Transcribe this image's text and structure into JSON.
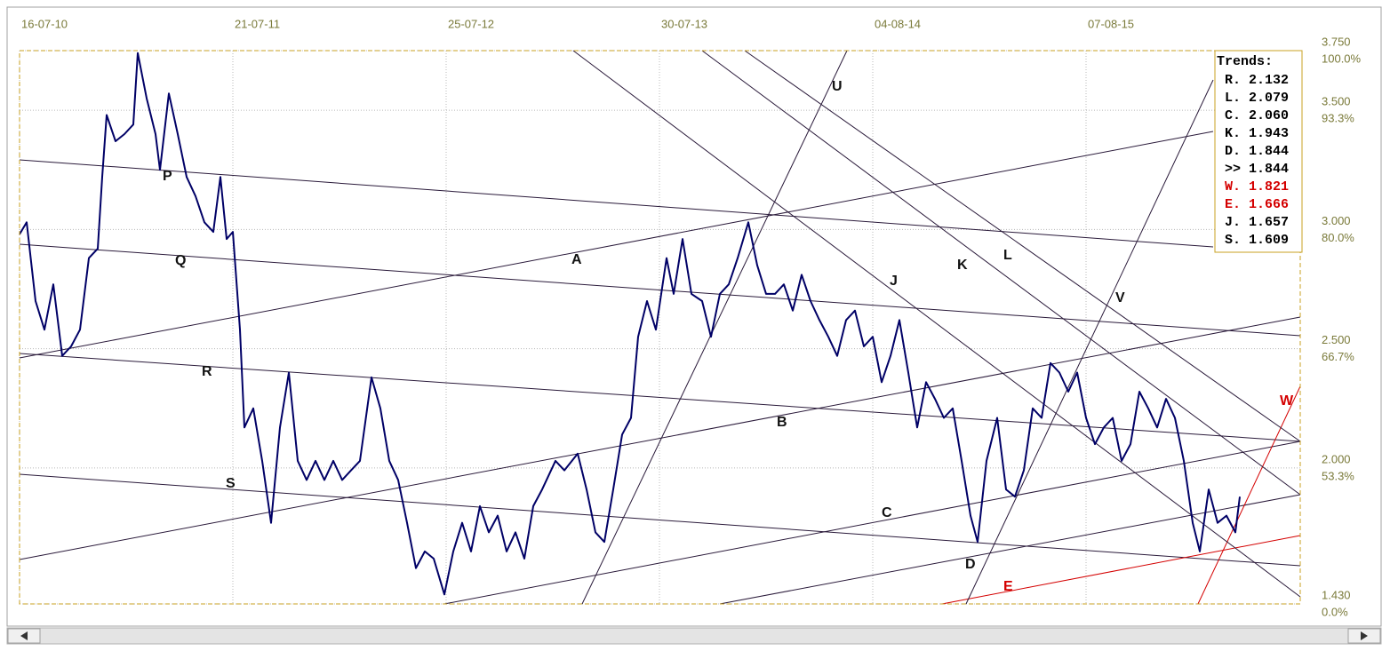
{
  "chart_data": {
    "type": "line",
    "color": "#000066",
    "grid": true,
    "xlim": [
      0,
      1441
    ],
    "xticks": [
      {
        "value": 0,
        "label": "16-07-10"
      },
      {
        "value": 240,
        "label": "21-07-11"
      },
      {
        "value": 480,
        "label": "25-07-12"
      },
      {
        "value": 720,
        "label": "30-07-13"
      },
      {
        "value": 960,
        "label": "04-08-14"
      },
      {
        "value": 1200,
        "label": "07-08-15"
      }
    ],
    "ylim": [
      1.43,
      3.75
    ],
    "yticks": [
      {
        "value": 1.43,
        "label": "1.430"
      },
      {
        "value": 2,
        "label": "2.000"
      },
      {
        "value": 2.5,
        "label": "2.500"
      },
      {
        "value": 3,
        "label": "3.000"
      },
      {
        "value": 3.5,
        "label": "3.500"
      },
      {
        "value": 3.75,
        "label": "3.750"
      }
    ],
    "ytick_percent_labels": [
      "0.0%",
      "53.3%",
      "66.7%",
      "80.0%",
      "93.3%",
      "100.0%"
    ],
    "x": [
      0,
      8,
      18,
      28,
      38,
      48,
      58,
      68,
      78,
      88,
      93,
      98,
      108,
      118,
      128,
      133,
      143,
      153,
      158,
      168,
      178,
      188,
      198,
      208,
      218,
      226,
      233,
      240,
      248,
      253,
      263,
      273,
      283,
      293,
      303,
      313,
      323,
      333,
      343,
      353,
      363,
      373,
      383,
      396,
      406,
      416,
      426,
      436,
      446,
      456,
      466,
      478,
      488,
      498,
      508,
      518,
      528,
      538,
      548,
      558,
      568,
      578,
      588,
      603,
      613,
      628,
      638,
      648,
      658,
      668,
      678,
      688,
      696,
      706,
      716,
      728,
      736,
      746,
      756,
      768,
      778,
      788,
      798,
      808,
      820,
      830,
      840,
      850,
      860,
      870,
      880,
      890,
      900,
      910,
      920,
      930,
      940,
      950,
      960,
      970,
      980,
      990,
      1000,
      1010,
      1020,
      1030,
      1040,
      1050,
      1060,
      1070,
      1078,
      1088,
      1100,
      1110,
      1120,
      1130,
      1140,
      1150,
      1160,
      1170,
      1180,
      1190,
      1200,
      1210,
      1220,
      1230,
      1240,
      1250,
      1260,
      1270,
      1280,
      1290,
      1300,
      1310,
      1320,
      1328,
      1338,
      1348,
      1358,
      1368,
      1373
    ],
    "values": [
      2.98,
      3.03,
      2.7,
      2.58,
      2.77,
      2.47,
      2.51,
      2.58,
      2.88,
      2.92,
      3.22,
      3.48,
      3.37,
      3.4,
      3.44,
      3.74,
      3.55,
      3.4,
      3.25,
      3.57,
      3.4,
      3.22,
      3.14,
      3.03,
      2.99,
      3.22,
      2.96,
      2.99,
      2.58,
      2.17,
      2.25,
      2.03,
      1.77,
      2.17,
      2.4,
      2.03,
      1.95,
      2.03,
      1.95,
      2.03,
      1.95,
      1.99,
      2.03,
      2.38,
      2.25,
      2.03,
      1.95,
      1.77,
      1.58,
      1.65,
      1.62,
      1.47,
      1.65,
      1.77,
      1.65,
      1.84,
      1.73,
      1.8,
      1.65,
      1.73,
      1.62,
      1.84,
      1.91,
      2.03,
      1.99,
      2.06,
      1.91,
      1.73,
      1.69,
      1.91,
      2.14,
      2.21,
      2.55,
      2.7,
      2.58,
      2.88,
      2.73,
      2.96,
      2.73,
      2.7,
      2.55,
      2.73,
      2.77,
      2.88,
      3.03,
      2.85,
      2.73,
      2.73,
      2.77,
      2.66,
      2.81,
      2.7,
      2.62,
      2.55,
      2.47,
      2.62,
      2.66,
      2.51,
      2.55,
      2.36,
      2.47,
      2.62,
      2.4,
      2.17,
      2.36,
      2.29,
      2.21,
      2.25,
      2.03,
      1.8,
      1.69,
      2.03,
      2.21,
      1.91,
      1.88,
      1.99,
      2.25,
      2.21,
      2.44,
      2.4,
      2.32,
      2.4,
      2.21,
      2.1,
      2.17,
      2.21,
      2.03,
      2.1,
      2.32,
      2.25,
      2.17,
      2.29,
      2.21,
      2.03,
      1.77,
      1.65,
      1.91,
      1.77,
      1.8,
      1.73,
      1.88
    ],
    "annotations": [
      "P",
      "Q",
      "R",
      "S",
      "A",
      "U",
      "B",
      "J",
      "K",
      "L",
      "C",
      "D",
      "E",
      "V",
      "W"
    ],
    "trends_box": {
      "title": "Trends:",
      "entries": [
        {
          "text": "R. 2.132",
          "color": "#000000"
        },
        {
          "text": "L. 2.079",
          "color": "#000000"
        },
        {
          "text": "C. 2.060",
          "color": "#000000"
        },
        {
          "text": "K. 1.943",
          "color": "#000000"
        },
        {
          "text": "D. 1.844",
          "color": "#000000"
        },
        {
          "text": ">> 1.844",
          "color": "#000000"
        },
        {
          "text": "W. 1.821",
          "color": "#d40000"
        },
        {
          "text": "E. 1.666",
          "color": "#d40000"
        },
        {
          "text": "J. 1.657",
          "color": "#000000"
        },
        {
          "text": "S. 1.609",
          "color": "#000000"
        }
      ]
    }
  }
}
